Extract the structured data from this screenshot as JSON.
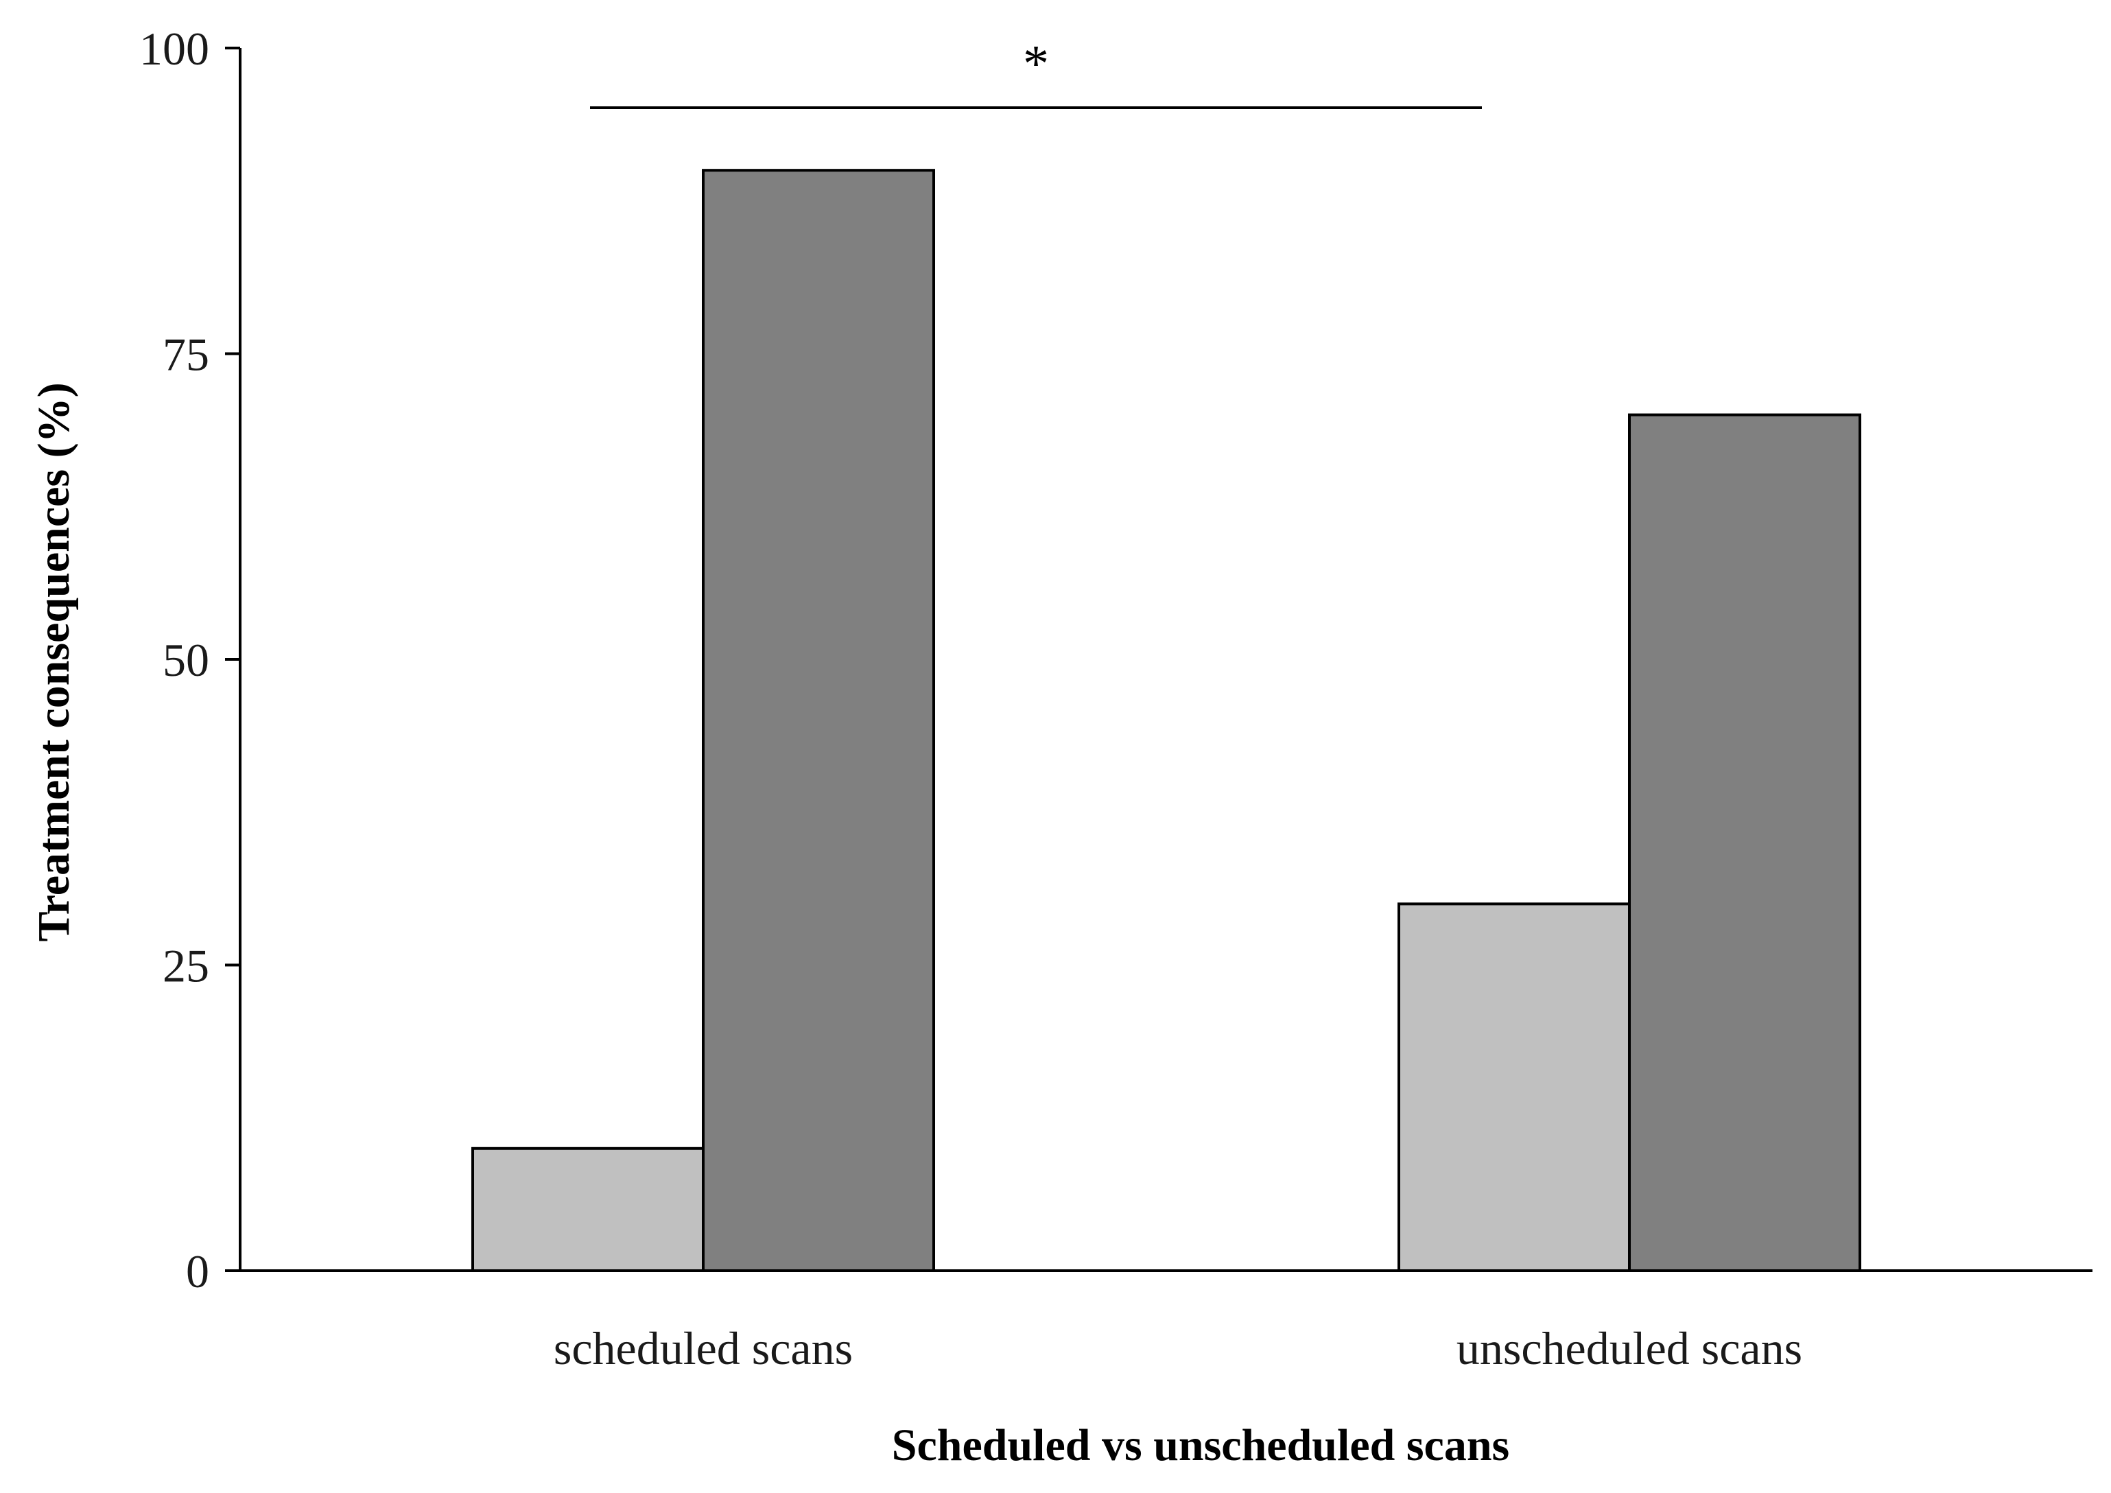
{
  "chart_data": {
    "type": "bar",
    "title": "",
    "xlabel": "Scheduled vs unscheduled scans",
    "ylabel": "Treatment consequences (%)",
    "categories": [
      "scheduled scans",
      "unscheduled scans"
    ],
    "series": [
      {
        "values": [
          10,
          30
        ],
        "color": "#c0c0c0"
      },
      {
        "values": [
          90,
          70
        ],
        "color": "#808080"
      }
    ],
    "ylim": [
      0,
      100
    ],
    "yticks": [
      0,
      25,
      50,
      75,
      100
    ],
    "grid": false,
    "legend": "none",
    "annotations": [
      {
        "text": "*",
        "between": [
          "scheduled scans",
          "unscheduled scans"
        ]
      }
    ]
  }
}
